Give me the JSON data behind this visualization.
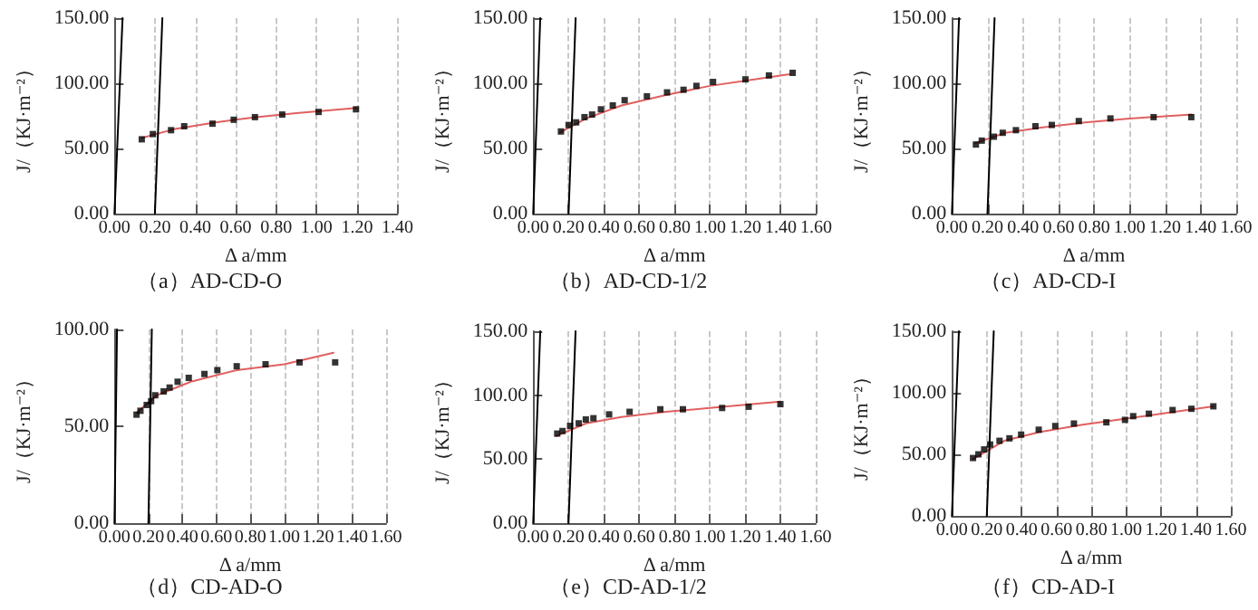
{
  "chart_data": [
    {
      "type": "scatter",
      "title": "（a）AD-CD-O",
      "xlabel": "Δ a/mm",
      "ylabel": "J/（KJ·m⁻²）",
      "grid": "x",
      "xlim": [
        0,
        1.4
      ],
      "ylim": [
        0,
        150
      ],
      "xticks": [
        {
          "value": 0,
          "label": "0.00"
        },
        {
          "value": 0.2,
          "label": "0.20"
        },
        {
          "value": 0.4,
          "label": "0.40"
        },
        {
          "value": 0.6,
          "label": "0.60"
        },
        {
          "value": 0.8,
          "label": "0.80"
        },
        {
          "value": 1,
          "label": "1.00"
        },
        {
          "value": 1.2,
          "label": "1.20"
        },
        {
          "value": 1.4,
          "label": "1.40"
        }
      ],
      "yticks": [
        {
          "value": 0,
          "label": "0.00"
        },
        {
          "value": 50,
          "label": "50.00"
        },
        {
          "value": 100,
          "label": "100.00"
        },
        {
          "value": 150,
          "label": "150.00"
        }
      ],
      "series": [
        {
          "marker": "square",
          "color": "#000000",
          "x": [
            0.135,
            0.19,
            0.28,
            0.345,
            0.485,
            0.59,
            0.695,
            0.83,
            1.01,
            1.195
          ],
          "values": [
            57,
            61,
            64,
            67,
            69,
            72,
            74,
            76,
            78,
            80
          ]
        },
        {
          "type": "line",
          "marker": "none",
          "color": "#e06060",
          "x": [
            0.135,
            0.3,
            0.5,
            0.7,
            0.9,
            1.2
          ],
          "values": [
            58,
            65,
            70,
            74,
            77,
            81
          ]
        },
        {
          "type": "line",
          "marker": "none",
          "color": "#000000",
          "x": [
            0,
            0.04
          ],
          "values": [
            0,
            150
          ]
        },
        {
          "type": "line",
          "marker": "none",
          "color": "#000000",
          "x": [
            0.2,
            0.237
          ],
          "values": [
            0,
            150
          ]
        }
      ]
    },
    {
      "type": "scatter",
      "title": "（b）AD-CD-1/2",
      "xlabel": "Δ a/mm",
      "ylabel": "J/（KJ·m⁻²）",
      "grid": "x",
      "xlim": [
        0,
        1.6
      ],
      "ylim": [
        0,
        150
      ],
      "xticks": [
        {
          "value": 0,
          "label": "0.00"
        },
        {
          "value": 0.2,
          "label": "0.20"
        },
        {
          "value": 0.4,
          "label": "0.40"
        },
        {
          "value": 0.6,
          "label": "0.60"
        },
        {
          "value": 0.8,
          "label": "0.80"
        },
        {
          "value": 1,
          "label": "1.00"
        },
        {
          "value": 1.2,
          "label": "1.20"
        },
        {
          "value": 1.4,
          "label": "1.40"
        },
        {
          "value": 1.6,
          "label": "1.60"
        }
      ],
      "yticks": [
        {
          "value": 0,
          "label": "0.00"
        },
        {
          "value": 50,
          "label": "50.00"
        },
        {
          "value": 100,
          "label": "100.00"
        },
        {
          "value": 150,
          "label": "150.00"
        }
      ],
      "series": [
        {
          "marker": "square",
          "color": "#000000",
          "x": [
            0.157,
            0.2,
            0.243,
            0.29,
            0.333,
            0.383,
            0.45,
            0.517,
            0.643,
            0.757,
            0.85,
            0.923,
            1.017,
            1.2,
            1.333,
            1.467
          ],
          "values": [
            63,
            68,
            70,
            74,
            76,
            80,
            83,
            87,
            90,
            93,
            95,
            98,
            101,
            103,
            106,
            108
          ]
        },
        {
          "type": "line",
          "marker": "none",
          "color": "#e06060",
          "x": [
            0.15,
            0.3,
            0.5,
            0.75,
            1,
            1.25,
            1.45
          ],
          "values": [
            62,
            73,
            83,
            91,
            98,
            103,
            107
          ]
        },
        {
          "type": "line",
          "marker": "none",
          "color": "#000000",
          "x": [
            0,
            0.04
          ],
          "values": [
            0,
            150
          ]
        },
        {
          "type": "line",
          "marker": "none",
          "color": "#000000",
          "x": [
            0.2,
            0.24
          ],
          "values": [
            0,
            150
          ]
        }
      ]
    },
    {
      "type": "scatter",
      "title": "（c）AD-CD-I",
      "xlabel": "Δ a/mm",
      "ylabel": "J/（KJ·m⁻²）",
      "grid": "x",
      "xlim": [
        0,
        1.6
      ],
      "ylim": [
        0,
        150
      ],
      "xticks": [
        {
          "value": 0,
          "label": "0.00"
        },
        {
          "value": 0.2,
          "label": "0.20"
        },
        {
          "value": 0.4,
          "label": "0.40"
        },
        {
          "value": 0.6,
          "label": "0.60"
        },
        {
          "value": 0.8,
          "label": "0.80"
        },
        {
          "value": 1,
          "label": "1.00"
        },
        {
          "value": 1.2,
          "label": "1.20"
        },
        {
          "value": 1.4,
          "label": "1.40"
        },
        {
          "value": 1.6,
          "label": "1.60"
        }
      ],
      "yticks": [
        {
          "value": 0,
          "label": "0.00"
        },
        {
          "value": 50,
          "label": "50.00"
        },
        {
          "value": 100,
          "label": "100.00"
        },
        {
          "value": 150,
          "label": "150.00"
        }
      ],
      "series": [
        {
          "marker": "square",
          "color": "#000000",
          "x": [
            0.135,
            0.168,
            0.236,
            0.286,
            0.36,
            0.47,
            0.562,
            0.714,
            0.892,
            1.135,
            1.347
          ],
          "values": [
            53,
            56,
            59,
            62,
            64,
            67,
            68,
            71,
            73,
            74,
            74
          ]
        },
        {
          "type": "line",
          "marker": "none",
          "color": "#e06060",
          "x": [
            0.13,
            0.3,
            0.5,
            0.75,
            1,
            1.35
          ],
          "values": [
            54,
            62,
            66,
            70,
            73,
            76
          ]
        },
        {
          "type": "line",
          "marker": "none",
          "color": "#000000",
          "x": [
            0,
            0.04
          ],
          "values": [
            0,
            150
          ]
        },
        {
          "type": "line",
          "marker": "none",
          "color": "#000000",
          "x": [
            0.2,
            0.24
          ],
          "values": [
            0,
            150
          ]
        }
      ]
    },
    {
      "type": "scatter",
      "title": "（d）CD-AD-O",
      "xlabel": "Δ a/mm",
      "ylabel": "J/（KJ·m⁻²）",
      "grid": "x",
      "xlim": [
        0,
        1.6
      ],
      "ylim": [
        0,
        100
      ],
      "xticks": [
        {
          "value": 0,
          "label": "0.00"
        },
        {
          "value": 0.2,
          "label": "0.20"
        },
        {
          "value": 0.4,
          "label": "0.40"
        },
        {
          "value": 0.6,
          "label": "0.60"
        },
        {
          "value": 0.8,
          "label": "0.80"
        },
        {
          "value": 1,
          "label": "1.00"
        },
        {
          "value": 1.2,
          "label": "1.20"
        },
        {
          "value": 1.4,
          "label": "1.40"
        },
        {
          "value": 1.6,
          "label": "1.60"
        }
      ],
      "yticks": [
        {
          "value": 0,
          "label": "0.00"
        },
        {
          "value": 50,
          "label": "50.00"
        },
        {
          "value": 100,
          "label": "100.00"
        }
      ],
      "series": [
        {
          "marker": "square",
          "color": "#000000",
          "x": [
            0.13,
            0.153,
            0.19,
            0.216,
            0.24,
            0.29,
            0.325,
            0.372,
            0.4375,
            0.53,
            0.606,
            0.72,
            0.89,
            1.09,
            1.3
          ],
          "values": [
            56,
            58,
            61,
            63,
            66,
            68,
            70,
            73,
            75,
            77,
            79,
            81,
            82,
            83,
            83
          ]
        },
        {
          "type": "line",
          "marker": "none",
          "color": "#e06060",
          "x": [
            0.13,
            0.25,
            0.45,
            0.72,
            1,
            1.29
          ],
          "values": [
            57,
            66,
            73,
            79,
            82,
            88
          ]
        },
        {
          "type": "line",
          "marker": "none",
          "color": "#000000",
          "x": [
            0,
            0.015
          ],
          "values": [
            0,
            100
          ]
        },
        {
          "type": "line",
          "marker": "none",
          "color": "#000000",
          "x": [
            0.2,
            0.22
          ],
          "values": [
            0,
            100
          ]
        }
      ]
    },
    {
      "type": "scatter",
      "title": "（e）CD-AD-1/2",
      "xlabel": "Δ a/mm",
      "ylabel": "J/（KJ·m⁻²）",
      "grid": "x",
      "xlim": [
        0,
        1.6
      ],
      "ylim": [
        0,
        150
      ],
      "xticks": [
        {
          "value": 0,
          "label": "0.00"
        },
        {
          "value": 0.2,
          "label": "0.20"
        },
        {
          "value": 0.4,
          "label": "0.40"
        },
        {
          "value": 0.6,
          "label": "0.60"
        },
        {
          "value": 0.8,
          "label": "0.80"
        },
        {
          "value": 1,
          "label": "1.00"
        },
        {
          "value": 1.2,
          "label": "1.20"
        },
        {
          "value": 1.4,
          "label": "1.40"
        },
        {
          "value": 1.6,
          "label": "1.60"
        }
      ],
      "yticks": [
        {
          "value": 0,
          "label": "0.00"
        },
        {
          "value": 50,
          "label": "50.00"
        },
        {
          "value": 100,
          "label": "100.00"
        },
        {
          "value": 150,
          "label": "150.00"
        }
      ],
      "series": [
        {
          "marker": "square",
          "color": "#000000",
          "x": [
            0.136,
            0.166,
            0.209,
            0.258,
            0.298,
            0.341,
            0.43,
            0.546,
            0.72,
            0.848,
            1.07,
            1.22,
            1.4
          ],
          "values": [
            70,
            72,
            76,
            78,
            81,
            82,
            85,
            87,
            89,
            89,
            90,
            91,
            93
          ]
        },
        {
          "type": "line",
          "marker": "none",
          "color": "#e06060",
          "x": [
            0.13,
            0.3,
            0.5,
            0.75,
            1,
            1.4
          ],
          "values": [
            68,
            78,
            83,
            87,
            90,
            95
          ]
        },
        {
          "type": "line",
          "marker": "none",
          "color": "#000000",
          "x": [
            0,
            0.04
          ],
          "values": [
            0,
            150
          ]
        },
        {
          "type": "line",
          "marker": "none",
          "color": "#000000",
          "x": [
            0.2,
            0.24
          ],
          "values": [
            0,
            150
          ]
        }
      ]
    },
    {
      "type": "scatter",
      "title": "（f）CD-AD-I",
      "xlabel": "Δ a/mm",
      "ylabel": "J/（KJ·m⁻²）",
      "grid": "x",
      "xlim": [
        0,
        1.6
      ],
      "ylim": [
        0,
        150
      ],
      "xticks": [
        {
          "value": 0,
          "label": "0.00"
        },
        {
          "value": 0.2,
          "label": "0.20"
        },
        {
          "value": 0.4,
          "label": "0.40"
        },
        {
          "value": 0.6,
          "label": "0.60"
        },
        {
          "value": 0.8,
          "label": "0.80"
        },
        {
          "value": 1,
          "label": "1.00"
        },
        {
          "value": 1.2,
          "label": "1.20"
        },
        {
          "value": 1.4,
          "label": "1.40"
        },
        {
          "value": 1.6,
          "label": "1.60"
        }
      ],
      "yticks": [
        {
          "value": 0,
          "label": "0.00"
        },
        {
          "value": 50,
          "label": "50.00"
        },
        {
          "value": 100,
          "label": "100.00"
        },
        {
          "value": 150,
          "label": "150.00"
        }
      ],
      "series": [
        {
          "marker": "square",
          "color": "#000000",
          "x": [
            0.121,
            0.152,
            0.185,
            0.219,
            0.273,
            0.33,
            0.397,
            0.498,
            0.593,
            0.7,
            0.886,
            0.993,
            1.04,
            1.13,
            1.266,
            1.374,
            1.5
          ],
          "values": [
            47,
            50,
            54,
            58,
            61,
            63,
            66,
            70,
            73,
            75,
            76,
            78,
            81,
            83,
            86,
            87,
            89
          ]
        },
        {
          "type": "line",
          "marker": "none",
          "color": "#e06060",
          "x": [
            0.12,
            0.3,
            0.5,
            0.75,
            1,
            1.25,
            1.5
          ],
          "values": [
            46,
            61,
            68,
            74,
            79,
            84,
            89
          ]
        },
        {
          "type": "line",
          "marker": "none",
          "color": "#000000",
          "x": [
            0,
            0.04
          ],
          "values": [
            0,
            150
          ]
        },
        {
          "type": "line",
          "marker": "none",
          "color": "#000000",
          "x": [
            0.2,
            0.24
          ],
          "values": [
            0,
            150
          ]
        }
      ]
    }
  ]
}
